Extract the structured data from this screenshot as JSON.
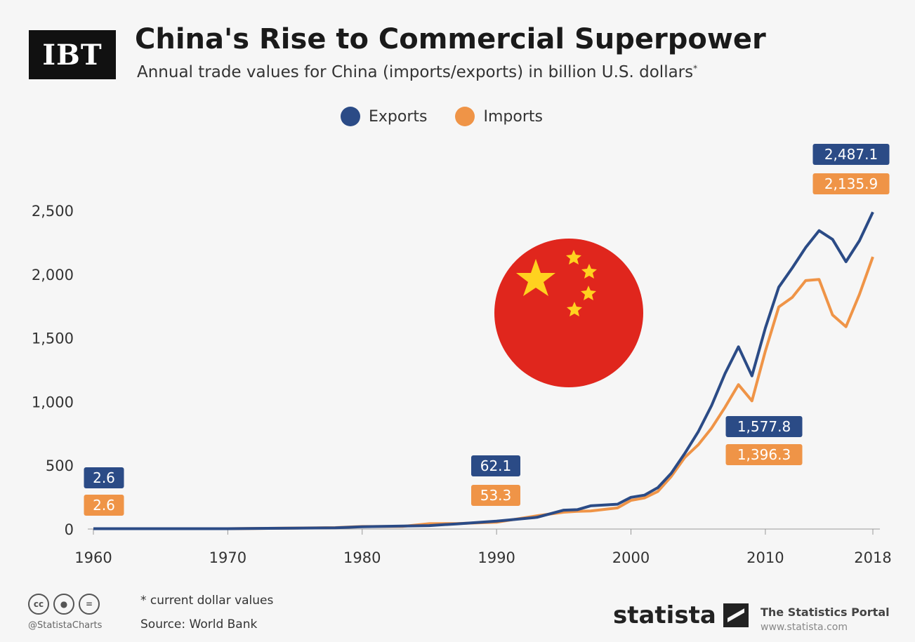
{
  "header": {
    "logo_text": "IBT",
    "title": "China's Rise to Commercial Superpower",
    "subtitle": "Annual trade values for China (imports/exports) in billion U.S. dollars",
    "subtitle_mark": "*"
  },
  "colors": {
    "exports": "#2b4b86",
    "imports": "#ef9447",
    "flag_red": "#e0261d",
    "flag_star": "#ffd21f"
  },
  "footer": {
    "note": "* current dollar values",
    "source": "Source: World Bank",
    "handle": "@StatistaCharts",
    "brand": "statista",
    "portal_title": "The Statistics Portal",
    "portal_url": "www.statista.com",
    "license_icons": [
      "cc-icon",
      "by-icon",
      "nd-icon"
    ]
  },
  "chart_data": {
    "type": "line",
    "ylim": [
      0,
      2500
    ],
    "yticks": [
      0,
      500,
      1000,
      1500,
      2000,
      2500
    ],
    "ytick_labels": [
      "0",
      "500",
      "1,000",
      "1,500",
      "2,000",
      "2,500"
    ],
    "xlim": [
      1960,
      2018
    ],
    "xticks": [
      1960,
      1970,
      1980,
      1990,
      2000,
      2010,
      2018
    ],
    "xtick_labels": [
      "1960",
      "1970",
      "1980",
      "1990",
      "2000",
      "2010",
      "2018"
    ],
    "grid": false,
    "legend_position": "top-center",
    "series": [
      {
        "name": "Exports",
        "points": [
          [
            1960,
            2.6
          ],
          [
            1965,
            3
          ],
          [
            1970,
            3
          ],
          [
            1975,
            7
          ],
          [
            1978,
            10
          ],
          [
            1980,
            18
          ],
          [
            1983,
            23
          ],
          [
            1985,
            27
          ],
          [
            1987,
            40
          ],
          [
            1990,
            62.1
          ],
          [
            1993,
            92
          ],
          [
            1995,
            148
          ],
          [
            1996,
            152
          ],
          [
            1997,
            182
          ],
          [
            1999,
            195
          ],
          [
            2000,
            249
          ],
          [
            2001,
            266
          ],
          [
            2002,
            325
          ],
          [
            2003,
            438
          ],
          [
            2004,
            593
          ],
          [
            2005,
            762
          ],
          [
            2006,
            969
          ],
          [
            2007,
            1220
          ],
          [
            2008,
            1430
          ],
          [
            2009,
            1202
          ],
          [
            2010,
            1577.8
          ],
          [
            2011,
            1898
          ],
          [
            2012,
            2049
          ],
          [
            2013,
            2209
          ],
          [
            2014,
            2342
          ],
          [
            2015,
            2273
          ],
          [
            2016,
            2098
          ],
          [
            2017,
            2263
          ],
          [
            2018,
            2487.1
          ]
        ]
      },
      {
        "name": "Imports",
        "points": [
          [
            1960,
            2.6
          ],
          [
            1965,
            2.6
          ],
          [
            1970,
            2.8
          ],
          [
            1975,
            7.5
          ],
          [
            1978,
            11
          ],
          [
            1980,
            20
          ],
          [
            1983,
            21
          ],
          [
            1985,
            42
          ],
          [
            1987,
            43
          ],
          [
            1990,
            53.3
          ],
          [
            1993,
            104
          ],
          [
            1995,
            132
          ],
          [
            1996,
            139
          ],
          [
            1997,
            142
          ],
          [
            1999,
            166
          ],
          [
            2000,
            225
          ],
          [
            2001,
            244
          ],
          [
            2002,
            295
          ],
          [
            2003,
            413
          ],
          [
            2004,
            561
          ],
          [
            2005,
            660
          ],
          [
            2006,
            792
          ],
          [
            2007,
            956
          ],
          [
            2008,
            1133
          ],
          [
            2009,
            1006
          ],
          [
            2010,
            1396.3
          ],
          [
            2011,
            1743
          ],
          [
            2012,
            1818
          ],
          [
            2013,
            1950
          ],
          [
            2014,
            1959
          ],
          [
            2015,
            1680
          ],
          [
            2016,
            1588
          ],
          [
            2017,
            1842
          ],
          [
            2018,
            2135.9
          ]
        ]
      }
    ],
    "annotations": [
      {
        "year": 1960,
        "series": "Exports",
        "label": "2.6"
      },
      {
        "year": 1960,
        "series": "Imports",
        "label": "2.6"
      },
      {
        "year": 1990,
        "series": "Exports",
        "label": "62.1"
      },
      {
        "year": 1990,
        "series": "Imports",
        "label": "53.3"
      },
      {
        "year": 2010,
        "series": "Exports",
        "label": "1,577.8"
      },
      {
        "year": 2010,
        "series": "Imports",
        "label": "1,396.3"
      },
      {
        "year": 2018,
        "series": "Exports",
        "label": "2,487.1"
      },
      {
        "year": 2018,
        "series": "Imports",
        "label": "2,135.9"
      }
    ]
  }
}
